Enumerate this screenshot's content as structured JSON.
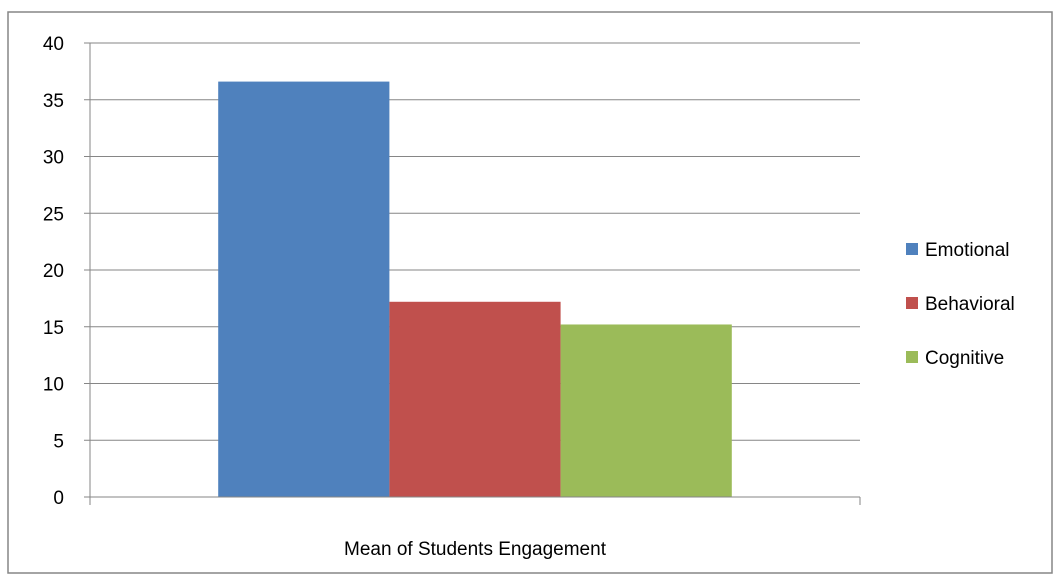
{
  "chart_data": {
    "type": "bar",
    "categories": [
      "Mean of Students Engagement"
    ],
    "series": [
      {
        "name": "Emotional",
        "values": [
          36.6
        ],
        "color": "#4F81BD"
      },
      {
        "name": "Behavioral",
        "values": [
          17.2
        ],
        "color": "#C0504D"
      },
      {
        "name": "Cognitive",
        "values": [
          15.2
        ],
        "color": "#9BBB59"
      }
    ],
    "title": "",
    "xlabel": "",
    "ylabel": "",
    "ylim": [
      0,
      40
    ],
    "yticks": [
      "0",
      "5",
      "10",
      "15",
      "20",
      "25",
      "30",
      "35",
      "40"
    ],
    "grid": true,
    "legend_position": "right",
    "colors": {
      "gridline": "#868686",
      "border": "#868686",
      "axis": "#868686"
    }
  }
}
